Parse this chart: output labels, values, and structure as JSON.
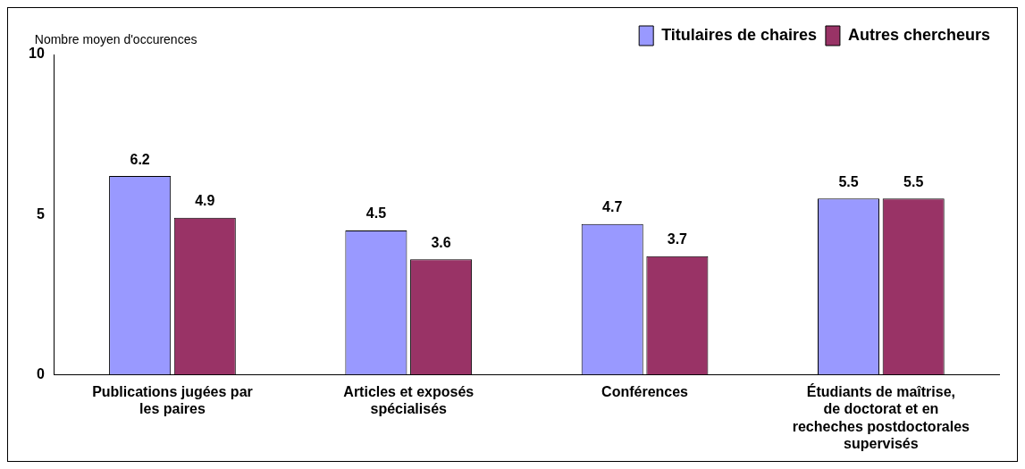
{
  "chart_data": {
    "type": "bar",
    "ylabel": "Nombre moyen d'occurences",
    "categories": [
      "Publications jugées par les paires",
      "Articles et exposés spécialisés",
      "Conférences",
      "Étudiants de maîtrise, de doctorat et en recheches postdoctorales supervisés"
    ],
    "series": [
      {
        "name": "Titulaires de chaires",
        "color": "#9999ff",
        "values": [
          6.2,
          4.5,
          4.7,
          5.5
        ]
      },
      {
        "name": "Autres chercheurs",
        "color": "#993366",
        "values": [
          4.9,
          3.6,
          3.7,
          5.5
        ]
      }
    ],
    "ylim": [
      0,
      10
    ],
    "yticks": [
      0,
      5,
      10
    ],
    "grid": false,
    "legend": "top right",
    "data_labels": true
  }
}
